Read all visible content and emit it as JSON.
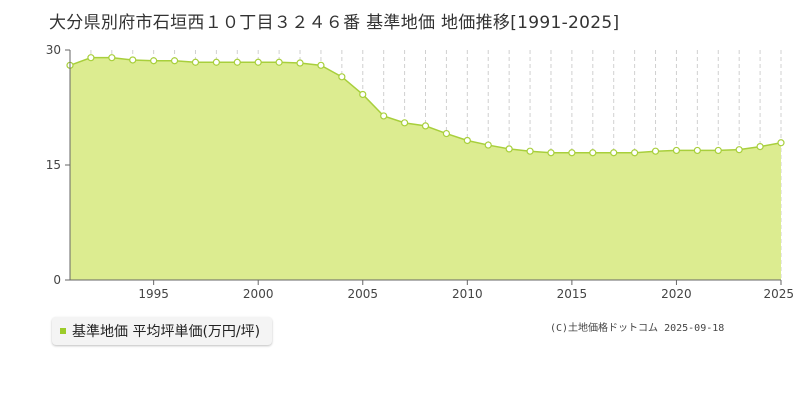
{
  "title": "大分県別府市石垣西１０丁目３２４６番 基準地価 地価推移[1991-2025]",
  "legend": {
    "label": "基準地価 平均坪単価(万円/坪)",
    "color": "#9ccc2a"
  },
  "credit": "(C)土地価格ドットコム 2025-09-18",
  "chart_data": {
    "type": "area",
    "title": "大分県別府市石垣西１０丁目３２４６番 基準地価 地価推移[1991-2025]",
    "xlabel": "",
    "ylabel": "",
    "xlim": [
      1991,
      2025
    ],
    "ylim": [
      0,
      30
    ],
    "y_ticks": [
      0,
      15,
      30
    ],
    "x_tick_labels": [
      1995,
      2000,
      2005,
      2010,
      2015,
      2020,
      2025
    ],
    "grid": true,
    "legend_position": "bottom-left",
    "fill_color": "#dcec90",
    "line_color": "#a8cf3c",
    "series": [
      {
        "name": "基準地価 平均坪単価(万円/坪)",
        "x": [
          1991,
          1992,
          1993,
          1994,
          1995,
          1996,
          1997,
          1998,
          1999,
          2000,
          2001,
          2002,
          2003,
          2004,
          2005,
          2006,
          2007,
          2008,
          2009,
          2010,
          2011,
          2012,
          2013,
          2014,
          2015,
          2016,
          2017,
          2018,
          2019,
          2020,
          2021,
          2022,
          2023,
          2024,
          2025
        ],
        "values": [
          28.0,
          29.0,
          29.0,
          28.7,
          28.6,
          28.6,
          28.4,
          28.4,
          28.4,
          28.4,
          28.4,
          28.3,
          28.0,
          26.5,
          24.2,
          21.4,
          20.5,
          20.1,
          19.1,
          18.2,
          17.6,
          17.1,
          16.8,
          16.6,
          16.6,
          16.6,
          16.6,
          16.6,
          16.8,
          16.9,
          16.9,
          16.9,
          17.0,
          17.4,
          17.9
        ]
      }
    ]
  }
}
